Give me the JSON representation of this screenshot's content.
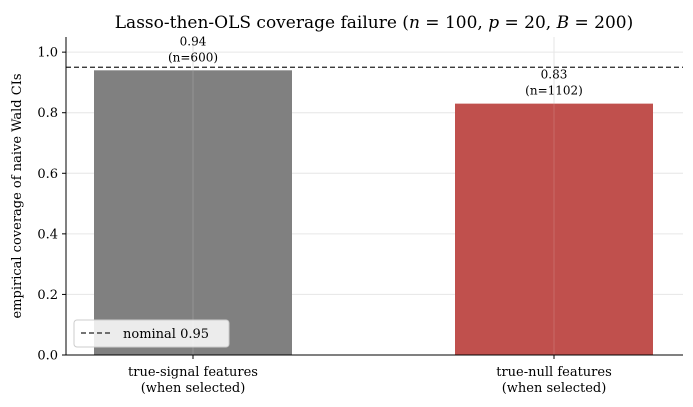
{
  "chart_data": {
    "type": "bar",
    "title_parts": {
      "prefix": "Lasso-then-OLS coverage failure (",
      "n_sym": "n",
      "n_eq": " = 100, ",
      "p_sym": "p",
      "p_eq": " = 20, ",
      "b_sym": "B",
      "b_eq": " = 200)"
    },
    "xlabel": "",
    "ylabel": "empirical coverage of naive Wald CIs",
    "ylim": [
      0,
      1.05
    ],
    "yticks": [
      "0.0",
      "0.2",
      "0.4",
      "0.6",
      "0.8",
      "1.0"
    ],
    "grid": true,
    "categories": [
      {
        "line1": "true-signal features",
        "line2": "(when selected)"
      },
      {
        "line1": "true-null features",
        "line2": "(when selected)"
      }
    ],
    "values": [
      0.94,
      0.83
    ],
    "data_labels": [
      {
        "value": "0.94",
        "count": "(n=600)"
      },
      {
        "value": "0.83",
        "count": "(n=1102)"
      }
    ],
    "bar_colors": [
      "#808080",
      "#c0504d"
    ],
    "reference_line": {
      "value": 0.95,
      "style": "dashed",
      "color": "#222222"
    },
    "legend": {
      "position": "lower-left",
      "label": "nominal 0.95"
    }
  }
}
